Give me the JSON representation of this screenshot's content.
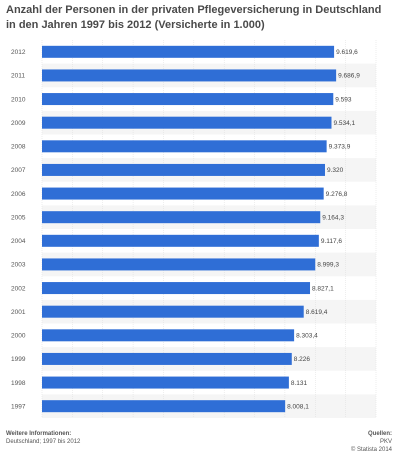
{
  "title": "Anzahl der Personen in der privaten Pflegeversicherung in Deutschland in den Jahren 1997 bis 2012 (Versicherte in 1.000)",
  "footer": {
    "info_heading": "Weitere Informationen:",
    "info_text": "Deutschland; 1997 bis 2012",
    "source_heading": "Quellen:",
    "source_text": "PKV",
    "copyright": "© Statista 2014"
  },
  "colors": {
    "bar": "#2f6ed6",
    "stripe": "#f5f5f5",
    "grid": "#dddddd"
  },
  "chart_data": {
    "type": "bar",
    "orientation": "horizontal",
    "title": "Anzahl der Personen in der privaten Pflegeversicherung in Deutschland in den Jahren 1997 bis 2012 (Versicherte in 1.000)",
    "categories": [
      "2012",
      "2011",
      "2010",
      "2009",
      "2008",
      "2007",
      "2006",
      "2005",
      "2004",
      "2003",
      "2002",
      "2001",
      "2000",
      "1999",
      "1998",
      "1997"
    ],
    "values": [
      9619.6,
      9686.9,
      9593,
      9534.1,
      9373.9,
      9320,
      9276.8,
      9164.3,
      9117.6,
      8999.3,
      8827.1,
      8619.4,
      8303.4,
      8226,
      8131,
      8008.1
    ],
    "value_labels": [
      "9.619,6",
      "9.686,9",
      "9.593",
      "9.534,1",
      "9.373,9",
      "9.320",
      "9.276,8",
      "9.164,3",
      "9.117,6",
      "8.999,3",
      "8.827,1",
      "8.619,4",
      "8.303,4",
      "8.226",
      "8.131",
      "8.008,1"
    ],
    "xlim": [
      0,
      11000
    ],
    "grid": true,
    "legend": "none"
  }
}
